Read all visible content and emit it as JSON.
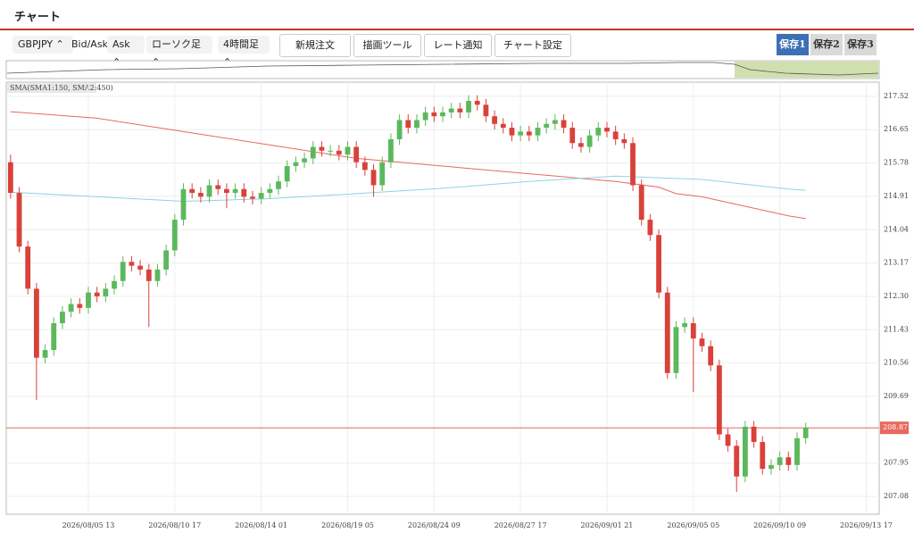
{
  "header": {
    "title": "チャート"
  },
  "toolbar": {
    "symbol": "GBPJPY",
    "price_type_label": "Bid/Ask",
    "price_type": "Ask",
    "chart_style": "ローソク足",
    "timeframe": "4時間足",
    "buttons": [
      "新規注文",
      "描画ツール",
      "レート通知",
      "チャート設定"
    ],
    "saves": [
      "保存1",
      "保存2",
      "保存3"
    ]
  },
  "chart_data": {
    "type": "candlestick",
    "indicator_label": "SMA(SMA1:150, SMA2:450)",
    "up_color": "#5cb85c",
    "down_color": "#d9413b",
    "open": [
      215.8,
      215.0,
      213.6,
      212.5,
      210.7,
      210.9,
      211.6,
      211.9,
      212.1,
      212.0,
      212.4,
      212.3,
      212.5,
      212.7,
      213.2,
      213.1,
      213.0,
      212.7,
      213.0,
      213.5,
      214.3,
      215.1,
      215.0,
      214.9,
      215.2,
      215.1,
      215.0,
      215.1,
      214.9,
      214.85,
      215.0,
      215.1,
      215.3,
      215.7,
      215.8,
      215.9,
      216.2,
      216.1,
      216.1,
      216.0,
      216.2,
      215.8,
      215.6,
      215.2,
      215.8,
      216.4,
      216.9,
      216.7,
      216.9,
      217.1,
      217.0,
      217.1,
      217.2,
      217.1,
      217.4,
      217.3,
      217.0,
      216.8,
      216.7,
      216.5,
      216.6,
      216.5,
      216.7,
      216.8,
      216.9,
      216.7,
      216.3,
      216.2,
      216.5,
      216.7,
      216.6,
      216.4,
      216.3,
      215.2,
      214.3,
      213.9,
      212.4,
      210.3,
      211.5,
      211.6,
      211.2,
      211.0,
      210.5,
      208.7,
      208.4,
      207.6,
      208.9,
      208.5,
      207.8,
      207.9,
      208.1,
      207.9,
      208.6
    ],
    "high": [
      216.0,
      215.15,
      213.75,
      212.65,
      211.05,
      211.75,
      212.05,
      212.25,
      212.25,
      212.55,
      212.55,
      212.65,
      212.85,
      213.35,
      213.35,
      213.25,
      213.15,
      213.15,
      213.65,
      214.45,
      215.25,
      215.25,
      215.15,
      215.35,
      215.35,
      215.25,
      215.25,
      215.25,
      215.05,
      215.15,
      215.25,
      215.45,
      215.85,
      215.95,
      216.05,
      216.35,
      216.35,
      216.25,
      216.25,
      216.35,
      216.35,
      215.95,
      215.75,
      215.95,
      216.55,
      217.05,
      217.05,
      217.05,
      217.25,
      217.25,
      217.25,
      217.35,
      217.35,
      217.55,
      217.55,
      217.45,
      217.15,
      216.95,
      216.85,
      216.75,
      216.75,
      216.85,
      216.95,
      217.05,
      217.05,
      216.85,
      216.45,
      216.65,
      216.85,
      216.85,
      216.75,
      216.55,
      216.45,
      215.35,
      214.45,
      214.05,
      212.55,
      211.65,
      211.75,
      211.75,
      211.35,
      211.15,
      210.65,
      208.85,
      208.55,
      209.05,
      209.05,
      208.65,
      208.05,
      208.25,
      208.25,
      208.75,
      209.0
    ],
    "low": [
      214.85,
      213.45,
      212.35,
      209.6,
      210.55,
      210.75,
      211.45,
      211.75,
      211.85,
      211.85,
      212.15,
      212.15,
      212.35,
      212.55,
      212.95,
      212.85,
      211.5,
      212.55,
      212.85,
      213.35,
      214.15,
      214.85,
      214.75,
      214.75,
      214.95,
      214.6,
      214.85,
      214.75,
      214.7,
      214.7,
      214.85,
      214.95,
      215.15,
      215.55,
      215.65,
      215.75,
      215.95,
      215.95,
      215.85,
      215.85,
      215.65,
      215.45,
      214.9,
      215.05,
      215.65,
      216.25,
      216.55,
      216.55,
      216.75,
      216.85,
      216.85,
      216.95,
      216.95,
      216.95,
      217.15,
      216.85,
      216.65,
      216.55,
      216.35,
      216.35,
      216.35,
      216.35,
      216.55,
      216.65,
      216.55,
      216.15,
      216.05,
      216.05,
      216.35,
      216.45,
      216.25,
      216.15,
      215.05,
      214.15,
      213.75,
      212.25,
      210.15,
      210.15,
      211.35,
      209.8,
      210.85,
      210.35,
      208.55,
      208.25,
      207.2,
      207.45,
      208.35,
      207.65,
      207.65,
      207.75,
      207.75,
      207.75,
      208.45
    ],
    "close": [
      215.0,
      213.6,
      212.5,
      210.7,
      210.9,
      211.6,
      211.9,
      212.1,
      212.0,
      212.4,
      212.3,
      212.5,
      212.7,
      213.2,
      213.1,
      213.0,
      212.7,
      213.0,
      213.5,
      214.3,
      215.1,
      215.0,
      214.9,
      215.2,
      215.1,
      215.0,
      215.1,
      214.9,
      214.85,
      215.0,
      215.1,
      215.3,
      215.7,
      215.8,
      215.9,
      216.2,
      216.1,
      216.1,
      216.0,
      216.2,
      215.8,
      215.6,
      215.2,
      215.8,
      216.4,
      216.9,
      216.7,
      216.9,
      217.1,
      217.0,
      217.1,
      217.2,
      217.1,
      217.4,
      217.3,
      217.0,
      216.8,
      216.7,
      216.5,
      216.6,
      216.5,
      216.7,
      216.8,
      216.9,
      216.7,
      216.3,
      216.2,
      216.5,
      216.7,
      216.6,
      216.4,
      216.3,
      215.2,
      214.3,
      213.9,
      212.4,
      210.3,
      211.5,
      211.6,
      211.2,
      211.0,
      210.5,
      208.7,
      208.4,
      207.6,
      208.9,
      208.5,
      207.8,
      207.9,
      208.1,
      207.9,
      208.6,
      208.87
    ],
    "indicators": [
      {
        "color": "#e8685e",
        "x": [
          0,
          10,
          20,
          30,
          40,
          50,
          60,
          70,
          75,
          77,
          80,
          90,
          92
        ],
        "values": [
          217.12,
          216.95,
          216.6,
          216.25,
          215.9,
          215.7,
          215.5,
          215.3,
          215.15,
          214.98,
          214.9,
          214.4,
          214.33
        ]
      },
      {
        "color": "#8fd3e3",
        "x": [
          0,
          10,
          20,
          30,
          40,
          50,
          60,
          70,
          80,
          90,
          92
        ],
        "values": [
          215.02,
          214.9,
          214.78,
          214.85,
          214.98,
          215.12,
          215.3,
          215.44,
          215.35,
          215.1,
          215.07
        ]
      }
    ],
    "current_price": 208.87,
    "current_price_color": "#e8685e",
    "xlim": [
      -0.5,
      100.5
    ],
    "xticks": [
      {
        "value": 9,
        "label": "2026/08/05 13"
      },
      {
        "value": 19,
        "label": "2026/08/10 17"
      },
      {
        "value": 29,
        "label": "2026/08/14 01"
      },
      {
        "value": 39,
        "label": "2026/08/19 05"
      },
      {
        "value": 49,
        "label": "2026/08/24 09"
      },
      {
        "value": 59,
        "label": "2026/08/27 17"
      },
      {
        "value": 69,
        "label": "2026/09/01 21"
      },
      {
        "value": 79,
        "label": "2026/09/05 05"
      },
      {
        "value": 89,
        "label": "2026/09/10 09"
      },
      {
        "value": 99,
        "label": "2026/09/13 17"
      }
    ],
    "ylim": [
      206.615,
      217.89
    ],
    "yticks": [
      207.08,
      207.95,
      209.69,
      210.56,
      211.43,
      {
        "value": 212.3,
        "label": "212.30"
      },
      213.17,
      214.04,
      214.91,
      215.78,
      216.65,
      217.52
    ],
    "grid": true
  }
}
